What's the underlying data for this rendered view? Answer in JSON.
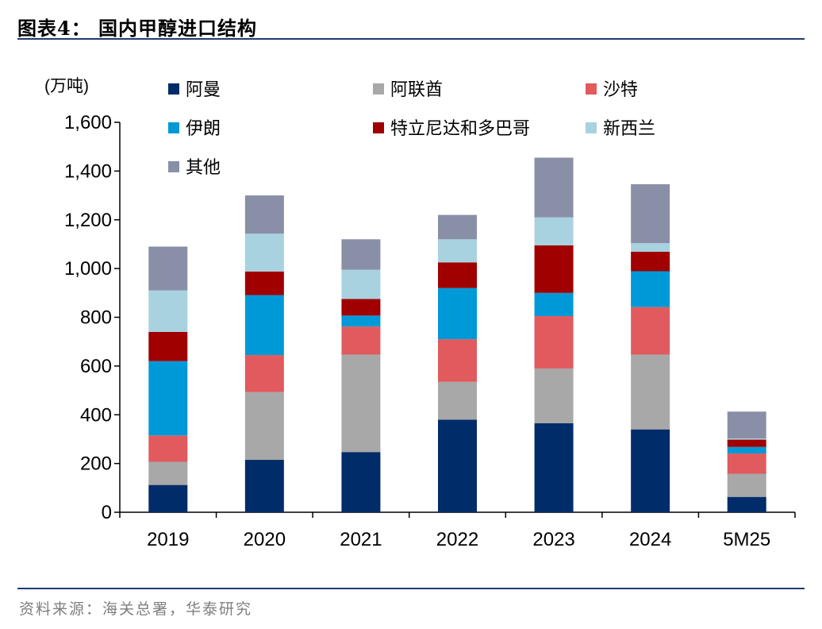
{
  "header": {
    "title": "图表4：  国内甲醇进口结构"
  },
  "footer": {
    "source": "资料来源：海关总署，华泰研究"
  },
  "colors": {
    "rule": "#1f3b73",
    "axis": "#000000"
  },
  "chart_data": {
    "type": "bar",
    "stacked": true,
    "categories": [
      "2019",
      "2020",
      "2021",
      "2022",
      "2023",
      "2024",
      "5M25"
    ],
    "ylabel": "(万吨)",
    "xlabel": "",
    "ylim": [
      0,
      1600
    ],
    "yticks": [
      0,
      200,
      400,
      600,
      800,
      1000,
      1200,
      1400,
      1600
    ],
    "ytick_labels": [
      "0",
      "200",
      "400",
      "600",
      "800",
      "1,000",
      "1,200",
      "1,400",
      "1,600"
    ],
    "grid": false,
    "legend_position": "top",
    "series": [
      {
        "name": "阿曼",
        "color": "#002c6a",
        "values": [
          112,
          215,
          247,
          380,
          365,
          340,
          63
        ]
      },
      {
        "name": "阿联酋",
        "color": "#a8a8a8",
        "values": [
          95,
          278,
          400,
          155,
          225,
          307,
          95
        ]
      },
      {
        "name": "沙特",
        "color": "#e05a5e",
        "values": [
          108,
          152,
          115,
          175,
          215,
          195,
          83
        ]
      },
      {
        "name": "伊朗",
        "color": "#0099d8",
        "values": [
          305,
          246,
          45,
          210,
          95,
          147,
          27
        ]
      },
      {
        "name": "特立尼达和多巴哥",
        "color": "#a00000",
        "values": [
          120,
          97,
          68,
          105,
          195,
          80,
          30
        ]
      },
      {
        "name": "新西兰",
        "color": "#a8d2e0",
        "values": [
          170,
          155,
          120,
          95,
          115,
          35,
          5
        ]
      },
      {
        "name": "其他",
        "color": "#8a8fa8",
        "values": [
          180,
          157,
          125,
          100,
          245,
          242,
          110
        ]
      }
    ]
  }
}
